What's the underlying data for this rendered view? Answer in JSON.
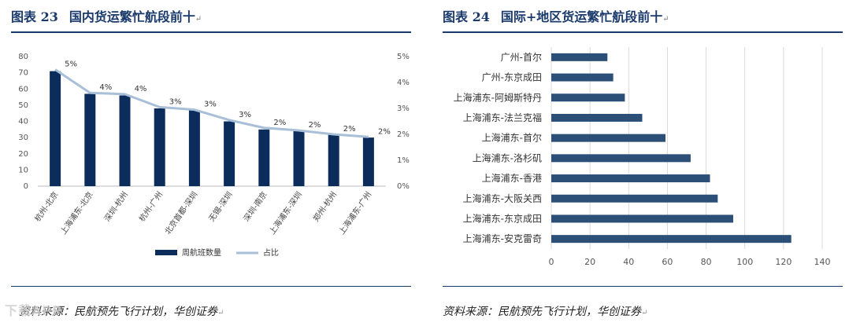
{
  "left": {
    "title_label": "图表 23",
    "title_text": "国内货运繁忙航段前十",
    "source": "资料来源：民航预先飞行计划，华创证券",
    "chart_data": {
      "type": "bar+line",
      "categories": [
        "杭州-北京",
        "上海浦东-北京",
        "深圳-杭州",
        "杭州-广州",
        "北京首都-深圳",
        "无锡-深圳",
        "深圳-南京",
        "上海浦东-深圳",
        "郑州-杭州",
        "上海浦东-广州"
      ],
      "series": [
        {
          "name": "周航班数量",
          "type": "bar",
          "axis": "left",
          "color": "#0c2d5c",
          "values": [
            71,
            57,
            56,
            48,
            47,
            40,
            35,
            34,
            32,
            30
          ]
        },
        {
          "name": "占比",
          "type": "line",
          "axis": "right",
          "color": "#a9bfd8",
          "values": [
            4.5,
            3.6,
            3.55,
            3.05,
            2.95,
            2.55,
            2.25,
            2.15,
            2.0,
            1.9
          ]
        }
      ],
      "data_labels": [
        "5%",
        "4%",
        "4%",
        "3%",
        "3%",
        "3%",
        "2%",
        "2%",
        "2%",
        "2%"
      ],
      "y_left": {
        "min": 0,
        "max": 80,
        "ticks": [
          "0",
          "10",
          "20",
          "30",
          "40",
          "50",
          "60",
          "70",
          "80"
        ]
      },
      "y_right": {
        "min": 0,
        "max": 5,
        "ticks": [
          "0%",
          "1%",
          "2%",
          "3%",
          "4%",
          "5%"
        ]
      },
      "legend": [
        "周航班数量",
        "占比"
      ],
      "legend_position": "bottom"
    }
  },
  "right": {
    "title_label": "图表 24",
    "title_text": "国际+地区货运繁忙航段前十",
    "source": "资料来源：民航预先飞行计划，华创证券",
    "chart_data": {
      "type": "bar-horizontal",
      "categories": [
        "广州-首尔",
        "广州-东京成田",
        "上海浦东-阿姆斯特丹",
        "上海浦东-法兰克福",
        "上海浦东-首尔",
        "上海浦东-洛杉矶",
        "上海浦东-香港",
        "上海浦东-大阪关西",
        "上海浦东-东京成田",
        "上海浦东-安克雷奇"
      ],
      "values": [
        29,
        32,
        38,
        47,
        59,
        72,
        82,
        86,
        94,
        124
      ],
      "color": "#2c4f78",
      "x_axis": {
        "min": 0,
        "max": 140,
        "ticks": [
          "0",
          "20",
          "40",
          "60",
          "80",
          "100",
          "120",
          "140"
        ]
      },
      "grid": true
    }
  },
  "watermark": "下载APP"
}
